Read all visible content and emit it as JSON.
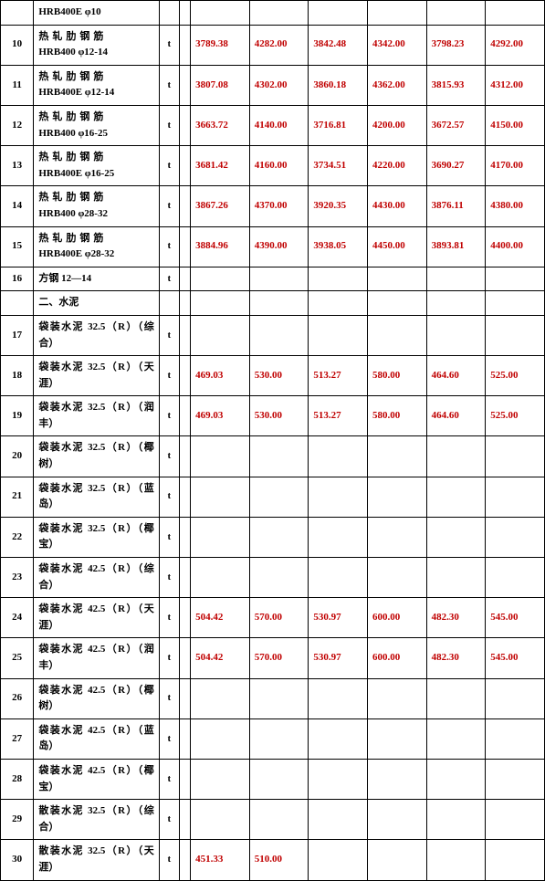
{
  "text_color": "#000000",
  "value_color": "#c00000",
  "border_color": "#000000",
  "background_color": "#ffffff",
  "font_family": "SimSun",
  "font_size_pt": 11,
  "columns": {
    "count": 10,
    "roles": [
      "index",
      "name",
      "unit",
      "spacer",
      "val1",
      "val2",
      "val3",
      "val4",
      "val5",
      "val6"
    ]
  },
  "rows": [
    {
      "idx": "",
      "name": "HRB400E φ10",
      "unit": "",
      "vals": [
        "",
        "",
        "",
        "",
        "",
        ""
      ],
      "height": "short"
    },
    {
      "idx": "10",
      "name_cjk": "热轧肋钢筋",
      "name_line2": "HRB400 φ12-14",
      "unit": "t",
      "vals": [
        "3789.38",
        "4282.00",
        "3842.48",
        "4342.00",
        "3798.23",
        "4292.00"
      ],
      "height": "tall"
    },
    {
      "idx": "11",
      "name_cjk": "热轧肋钢筋",
      "name_line2": "HRB400E φ12-14",
      "unit": "t",
      "vals": [
        "3807.08",
        "4302.00",
        "3860.18",
        "4362.00",
        "3815.93",
        "4312.00"
      ],
      "height": "tall"
    },
    {
      "idx": "12",
      "name_cjk": "热轧肋钢筋",
      "name_line2": "HRB400 φ16-25",
      "unit": "t",
      "vals": [
        "3663.72",
        "4140.00",
        "3716.81",
        "4200.00",
        "3672.57",
        "4150.00"
      ],
      "height": "tall"
    },
    {
      "idx": "13",
      "name_cjk": "热轧肋钢筋",
      "name_line2": "HRB400E φ16-25",
      "unit": "t",
      "vals": [
        "3681.42",
        "4160.00",
        "3734.51",
        "4220.00",
        "3690.27",
        "4170.00"
      ],
      "height": "tall"
    },
    {
      "idx": "14",
      "name_cjk": "热轧肋钢筋",
      "name_line2": "HRB400 φ28-32",
      "unit": "t",
      "vals": [
        "3867.26",
        "4370.00",
        "3920.35",
        "4430.00",
        "3876.11",
        "4380.00"
      ],
      "height": "tall"
    },
    {
      "idx": "15",
      "name_cjk": "热轧肋钢筋",
      "name_line2": "HRB400E φ28-32",
      "unit": "t",
      "vals": [
        "3884.96",
        "4390.00",
        "3938.05",
        "4450.00",
        "3893.81",
        "4400.00"
      ],
      "height": "tall"
    },
    {
      "idx": "16",
      "name": "方钢 12—14",
      "unit": "t",
      "vals": [
        "",
        "",
        "",
        "",
        "",
        ""
      ],
      "height": "short"
    },
    {
      "idx": "",
      "name": "二、水泥",
      "unit": "",
      "vals": [
        "",
        "",
        "",
        "",
        "",
        ""
      ],
      "section": true,
      "height": "short"
    },
    {
      "idx": "17",
      "name": "袋装水泥 32.5（R）（综合）",
      "unit": "t",
      "vals": [
        "",
        "",
        "",
        "",
        "",
        ""
      ],
      "height": "tall"
    },
    {
      "idx": "18",
      "name": "袋装水泥 32.5（R）（天涯）",
      "unit": "t",
      "vals": [
        "469.03",
        "530.00",
        "513.27",
        "580.00",
        "464.60",
        "525.00"
      ],
      "height": "tall"
    },
    {
      "idx": "19",
      "name": "袋装水泥 32.5（R）（润丰）",
      "unit": "t",
      "vals": [
        "469.03",
        "530.00",
        "513.27",
        "580.00",
        "464.60",
        "525.00"
      ],
      "height": "tall"
    },
    {
      "idx": "20",
      "name": "袋装水泥 32.5（R）（椰树）",
      "unit": "t",
      "vals": [
        "",
        "",
        "",
        "",
        "",
        ""
      ],
      "height": "tall"
    },
    {
      "idx": "21",
      "name": "袋装水泥 32.5（R）（蓝岛）",
      "unit": "t",
      "vals": [
        "",
        "",
        "",
        "",
        "",
        ""
      ],
      "height": "tall"
    },
    {
      "idx": "22",
      "name": "袋装水泥 32.5（R）（椰宝）",
      "unit": "t",
      "vals": [
        "",
        "",
        "",
        "",
        "",
        ""
      ],
      "height": "tall"
    },
    {
      "idx": "23",
      "name": "袋装水泥 42.5（R）（综合）",
      "unit": "t",
      "vals": [
        "",
        "",
        "",
        "",
        "",
        ""
      ],
      "height": "tall"
    },
    {
      "idx": "24",
      "name": "袋装水泥 42.5（R）（天涯）",
      "unit": "t",
      "vals": [
        "504.42",
        "570.00",
        "530.97",
        "600.00",
        "482.30",
        "545.00"
      ],
      "height": "tall"
    },
    {
      "idx": "25",
      "name": "袋装水泥 42.5（R）（润丰）",
      "unit": "t",
      "vals": [
        "504.42",
        "570.00",
        "530.97",
        "600.00",
        "482.30",
        "545.00"
      ],
      "height": "tall"
    },
    {
      "idx": "26",
      "name": "袋装水泥 42.5（R）（椰树）",
      "unit": "t",
      "vals": [
        "",
        "",
        "",
        "",
        "",
        ""
      ],
      "height": "tall"
    },
    {
      "idx": "27",
      "name": "袋装水泥 42.5（R）（蓝岛）",
      "unit": "t",
      "vals": [
        "",
        "",
        "",
        "",
        "",
        ""
      ],
      "height": "tall"
    },
    {
      "idx": "28",
      "name": "袋装水泥 42.5（R）（椰宝）",
      "unit": "t",
      "vals": [
        "",
        "",
        "",
        "",
        "",
        ""
      ],
      "height": "tall"
    },
    {
      "idx": "29",
      "name": "散装水泥 32.5（R）（综合）",
      "unit": "t",
      "vals": [
        "",
        "",
        "",
        "",
        "",
        ""
      ],
      "height": "tall"
    },
    {
      "idx": "30",
      "name": "散装水泥 32.5（R）（天涯）",
      "unit": "t",
      "vals": [
        "451.33",
        "510.00",
        "",
        "",
        "",
        ""
      ],
      "height": "tall"
    }
  ]
}
